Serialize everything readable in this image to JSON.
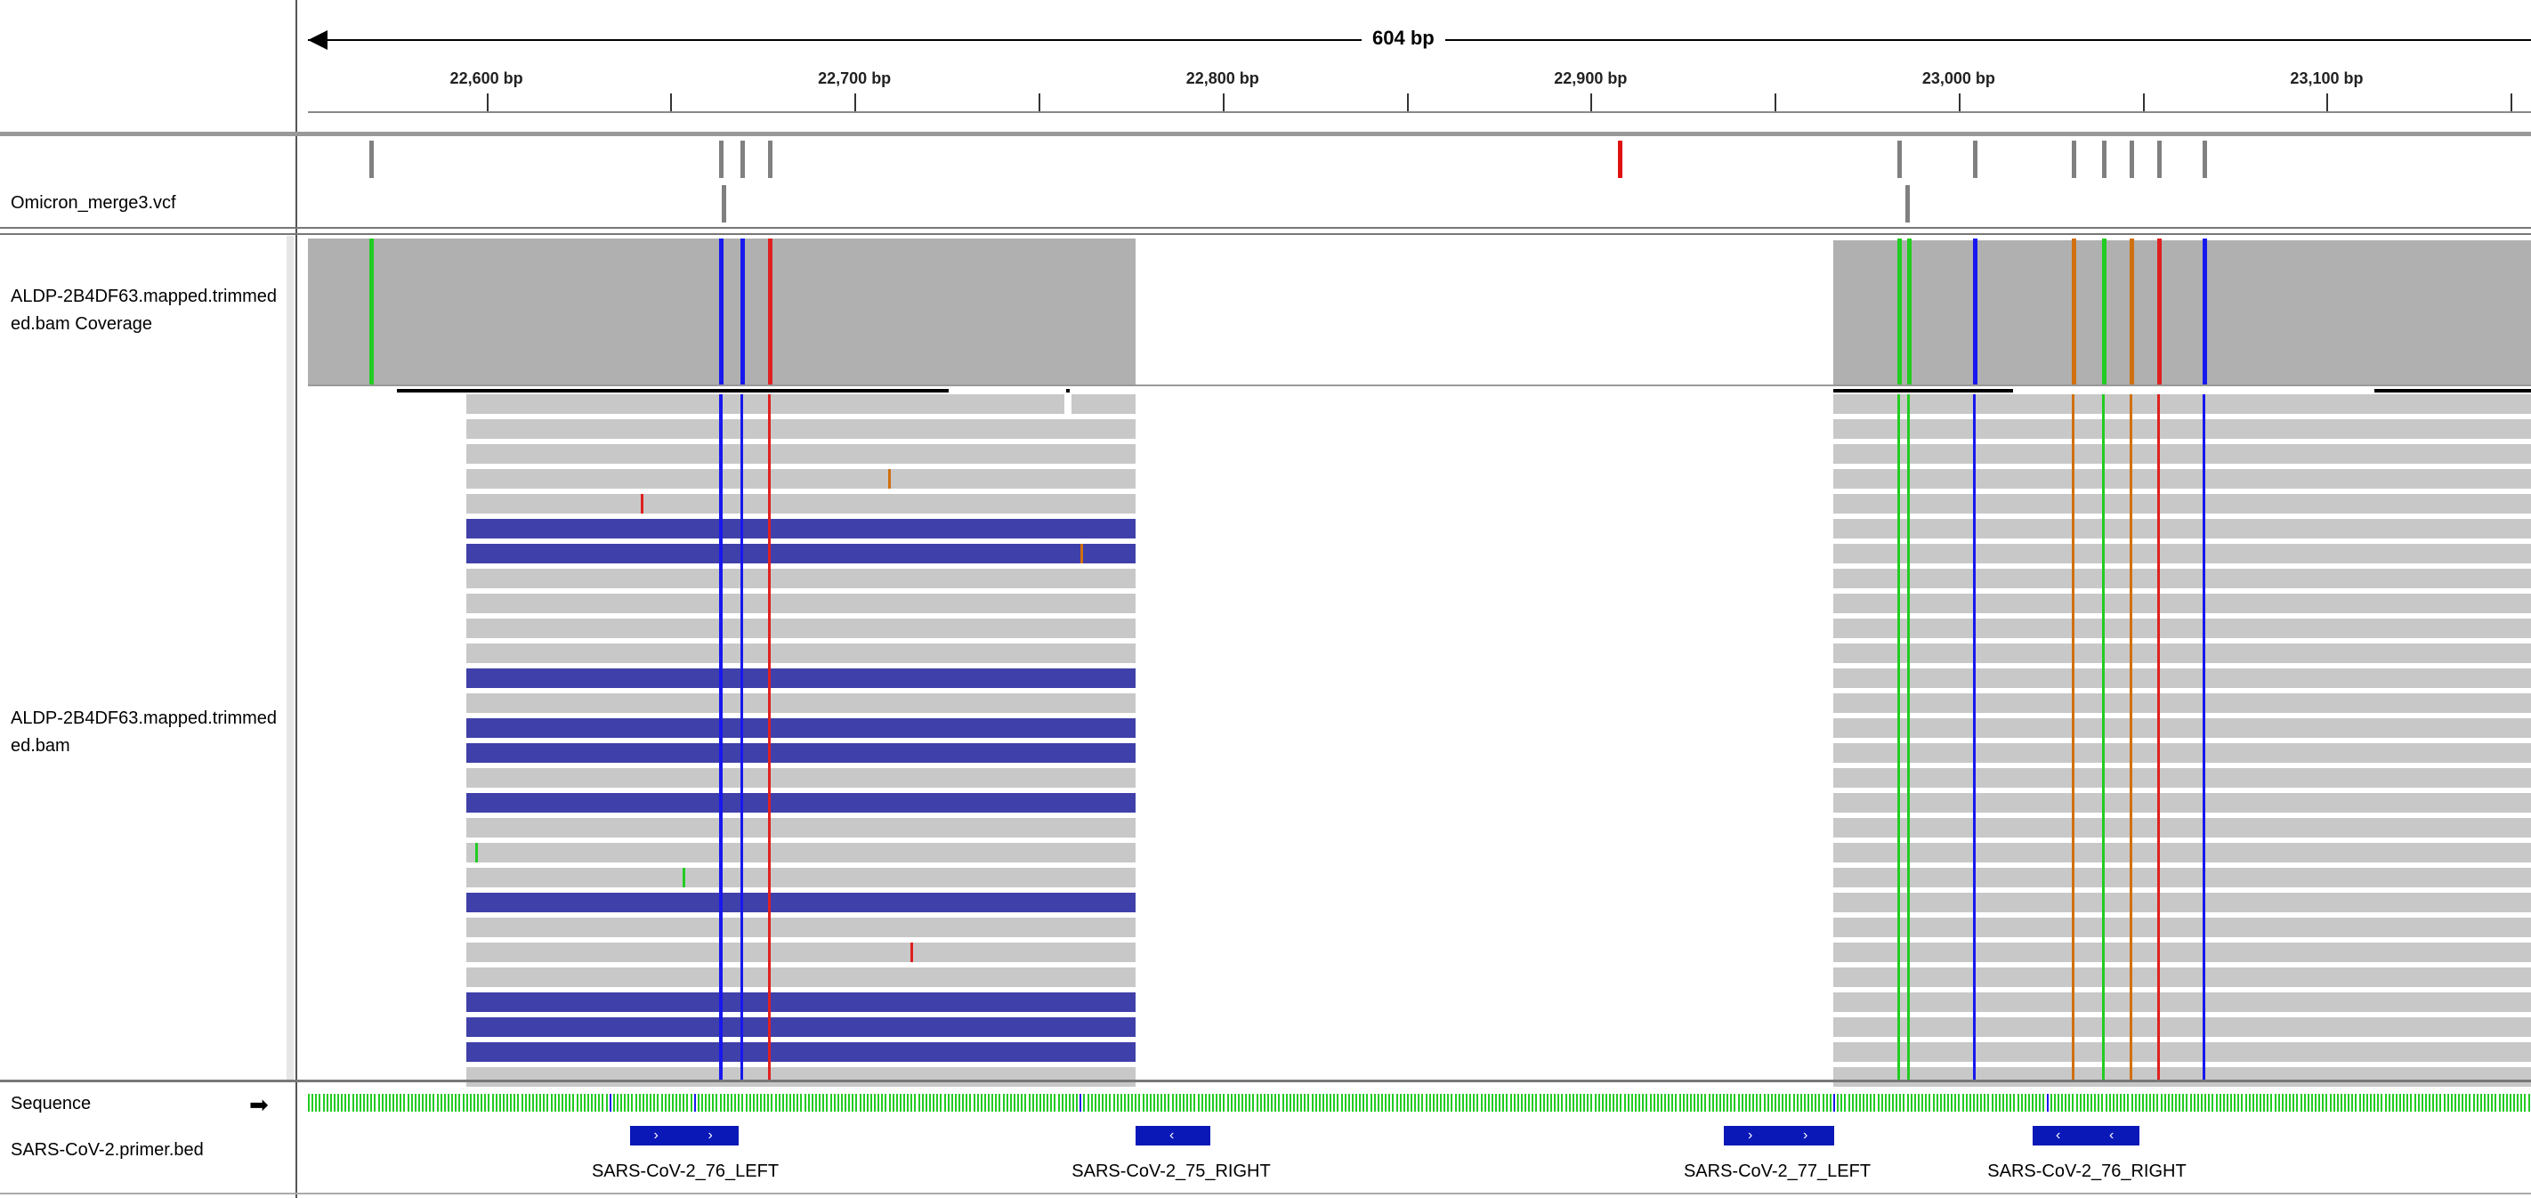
{
  "ruler": {
    "span_label": "604 bp",
    "ticks": [
      {
        "label": "22,600 bp",
        "pos": 22600
      },
      {
        "label": "22,700 bp",
        "pos": 22700
      },
      {
        "label": "22,800 bp",
        "pos": 22800
      },
      {
        "label": "22,900 bp",
        "pos": 22900
      },
      {
        "label": "23,000 bp",
        "pos": 23000
      },
      {
        "label": "23,100 bp",
        "pos": 23100
      }
    ]
  },
  "tracks": {
    "vcf_label": "Omicron_merge3.vcf",
    "coverage_label": "ALDP-2B4DF63.mapped.trimmed\ned.bam Coverage",
    "alignment_label": "ALDP-2B4DF63.mapped.trimmed\ned.bam",
    "sequence_label": "Sequence",
    "primer_label": "SARS-CoV-2.primer.bed"
  },
  "primers": [
    {
      "name": "SARS-CoV-2_76_LEFT",
      "strand": "+"
    },
    {
      "name": "SARS-CoV-2_75_RIGHT",
      "strand": "-"
    },
    {
      "name": "SARS-CoV-2_77_LEFT",
      "strand": "+"
    },
    {
      "name": "SARS-CoV-2_76_RIGHT",
      "strand": "-"
    }
  ],
  "colors": {
    "coverage": "#b0b0b0",
    "read": "#c8c8c8",
    "read_mq0": "#4040aa",
    "snp_A": "#22cc22",
    "snp_C": "#1818ee",
    "snp_G": "#d07010",
    "snp_T": "#e02020",
    "vcf_variant": "#808080",
    "vcf_highlight": "#e01010"
  }
}
